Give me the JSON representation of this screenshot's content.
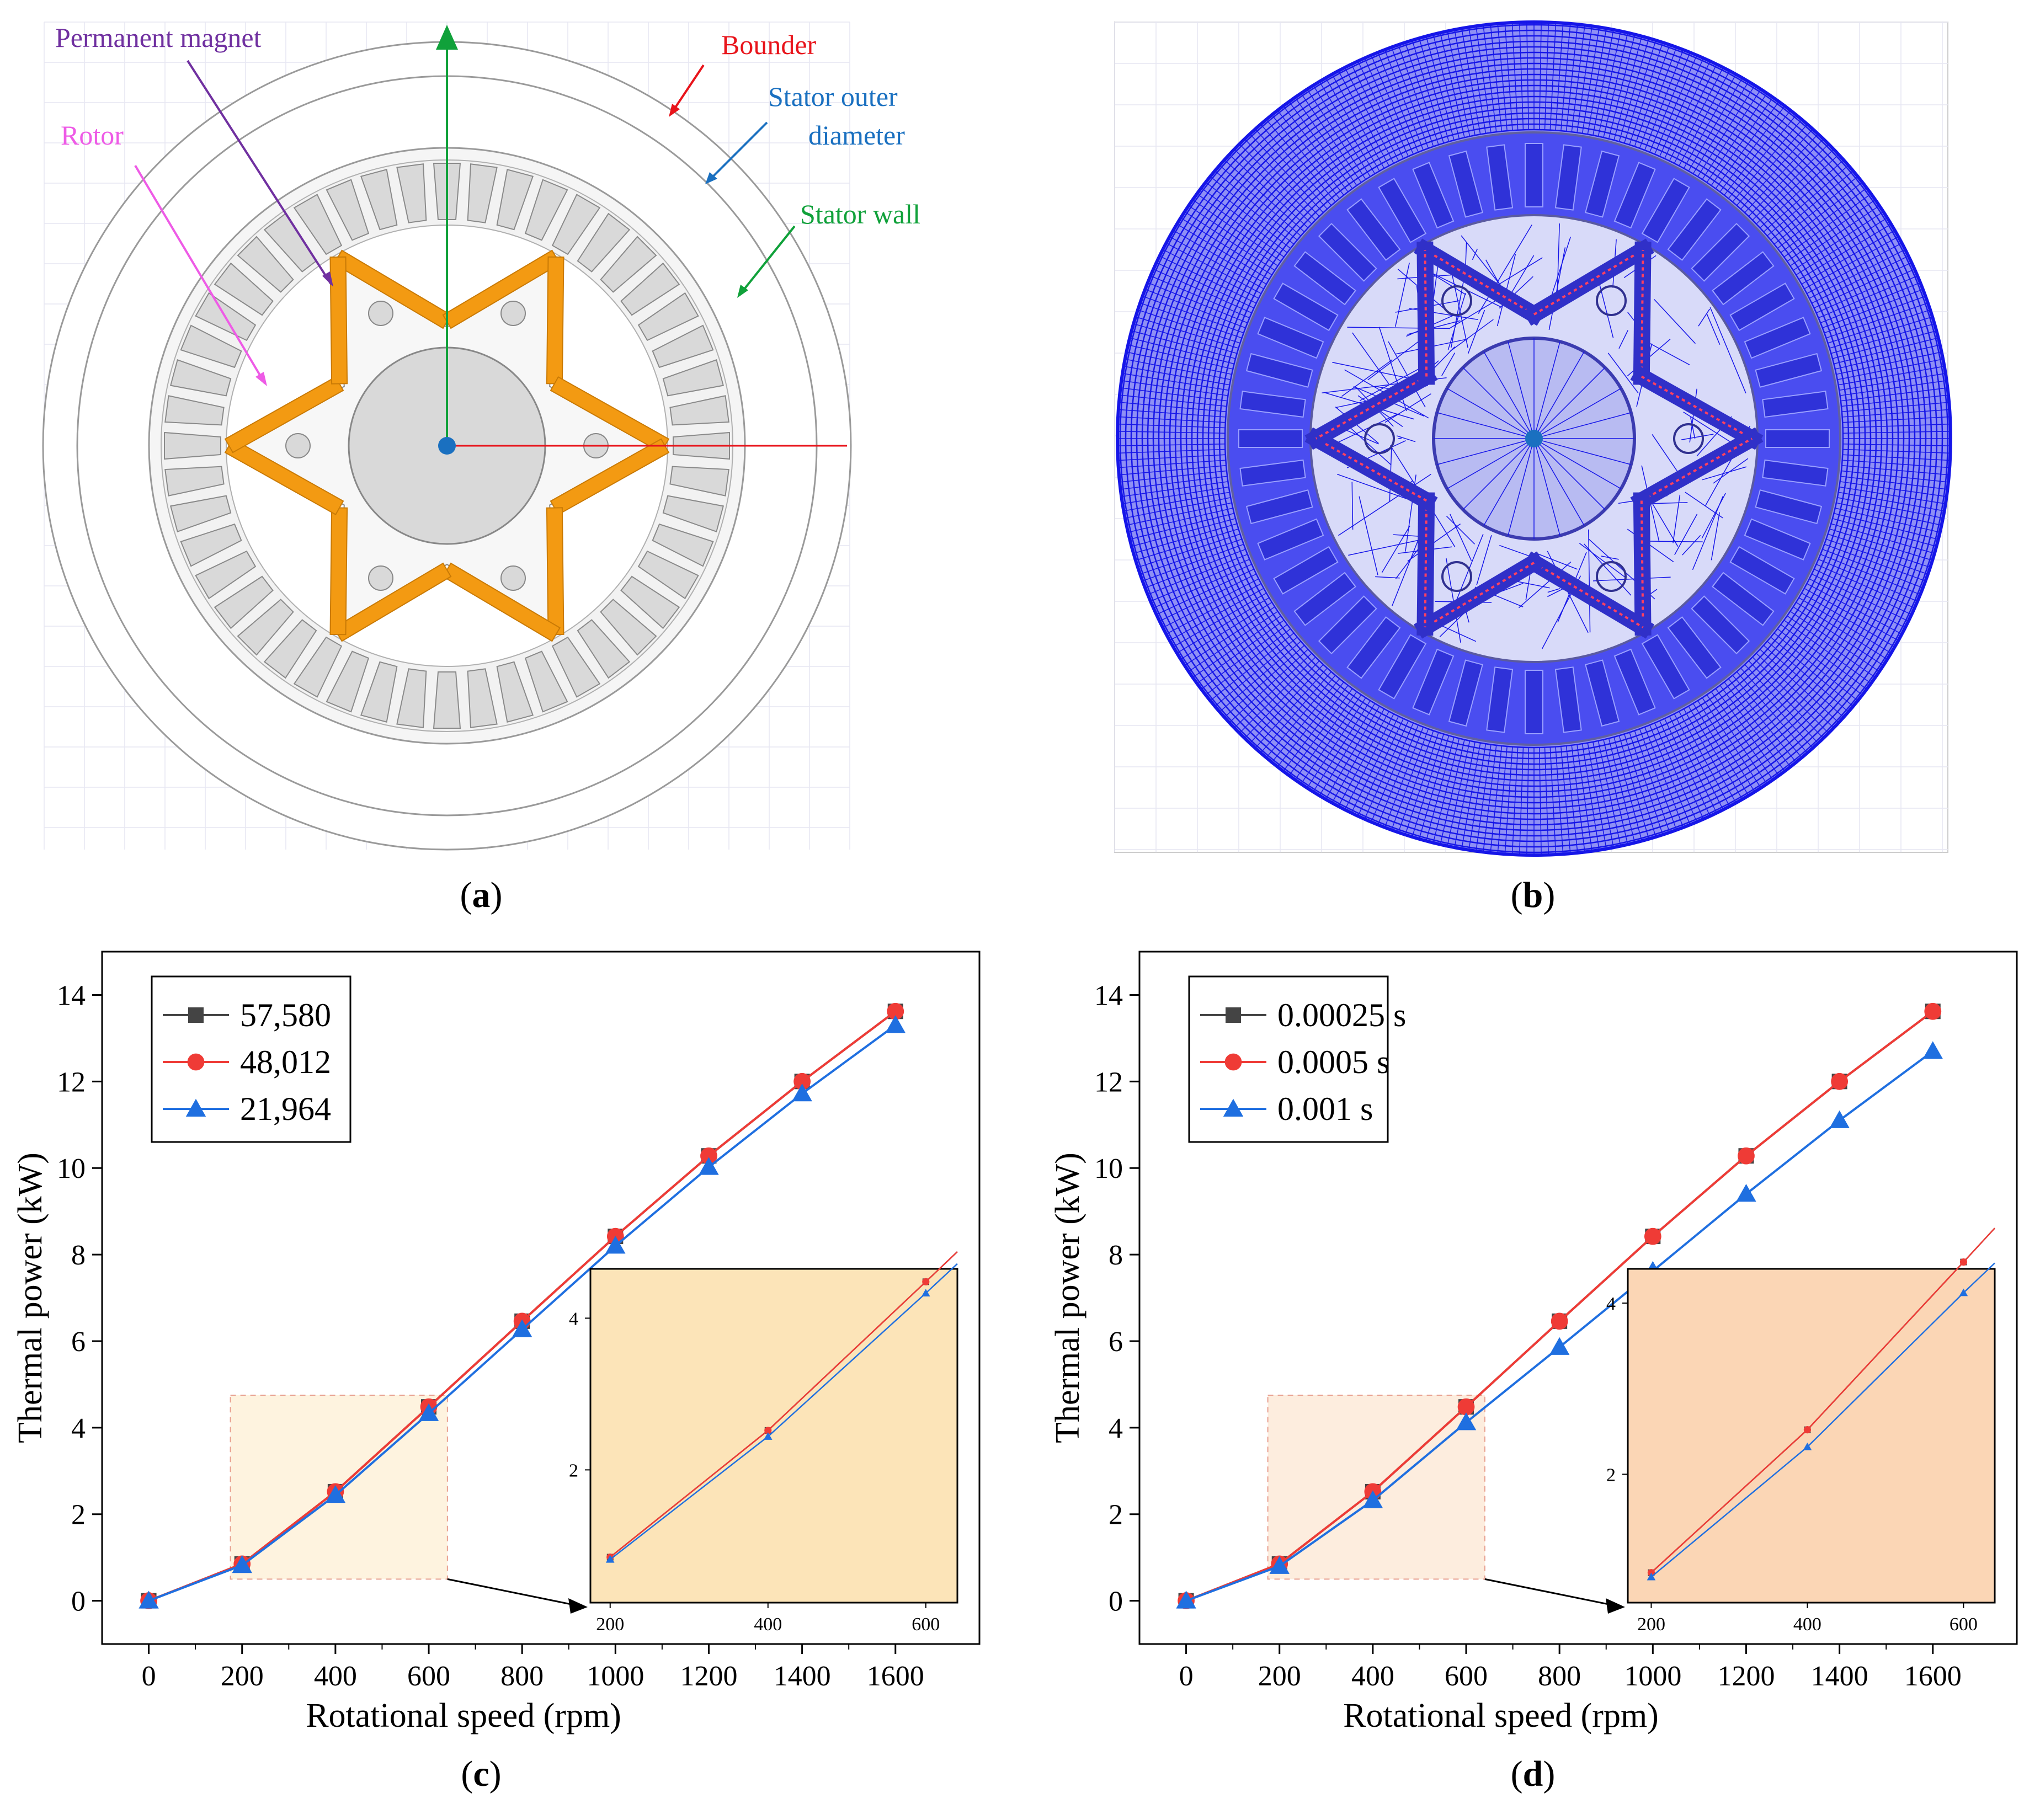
{
  "panel_a": {
    "caption_label": "a",
    "labels": {
      "permanent_magnet": "Permanent magnet",
      "rotor": "Rotor",
      "bounder": "Bounder",
      "stator_outer_1": "Stator outer",
      "stator_outer_2": "diameter",
      "stator_wall": "Stator wall"
    },
    "colors": {
      "magnet": "#f39a12",
      "permanent_magnet": "#7030a0",
      "rotor": "#ee5be6",
      "bounder": "#e8141b",
      "stator_outer": "#1a70c0",
      "stator_wall": "#10a13a"
    }
  },
  "panel_b": {
    "caption_label": "b",
    "mesh_color": "#1616e8"
  },
  "panel_c": {
    "caption_label": "c",
    "chart_data": {
      "type": "line",
      "xlabel": "Rotational speed (rpm)",
      "ylabel": "Thermal power (kW)",
      "xlim": [
        -100,
        1780
      ],
      "ylim": [
        -1,
        15
      ],
      "xticks": [
        0,
        200,
        400,
        600,
        800,
        1000,
        1200,
        1400,
        1600
      ],
      "yticks": [
        0,
        2,
        4,
        6,
        8,
        10,
        12,
        14
      ],
      "x": [
        0,
        200,
        400,
        600,
        800,
        1000,
        1200,
        1400,
        1600
      ],
      "series": [
        {
          "name": "57,580",
          "color": "#444444",
          "marker": "square",
          "values": [
            0,
            0.85,
            2.52,
            4.48,
            6.46,
            8.42,
            10.28,
            12.0,
            13.62
          ]
        },
        {
          "name": "48,012",
          "color": "#ef3b36",
          "marker": "circle",
          "values": [
            0,
            0.85,
            2.52,
            4.48,
            6.46,
            8.42,
            10.28,
            12.0,
            13.62
          ]
        },
        {
          "name": "21,964",
          "color": "#1f6fe0",
          "marker": "triangle",
          "values": [
            0,
            0.82,
            2.44,
            4.33,
            6.27,
            8.2,
            10.02,
            11.72,
            13.3
          ]
        }
      ],
      "inset": {
        "xlim": [
          175,
          640
        ],
        "ylim": [
          0.25,
          4.65
        ],
        "xticks": [
          200,
          400,
          600
        ],
        "yticks": [
          2,
          4
        ],
        "background": "#fce4b8"
      }
    }
  },
  "panel_d": {
    "caption_label": "d",
    "chart_data": {
      "type": "line",
      "xlabel": "Rotational speed (rpm)",
      "ylabel": "Thermal power (kW)",
      "xlim": [
        -100,
        1780
      ],
      "ylim": [
        -1,
        15
      ],
      "xticks": [
        0,
        200,
        400,
        600,
        800,
        1000,
        1200,
        1400,
        1600
      ],
      "yticks": [
        0,
        2,
        4,
        6,
        8,
        10,
        12,
        14
      ],
      "x": [
        0,
        200,
        400,
        600,
        800,
        1000,
        1200,
        1400,
        1600
      ],
      "series": [
        {
          "name": "0.00025 s",
          "color": "#444444",
          "marker": "square",
          "values": [
            0,
            0.85,
            2.52,
            4.48,
            6.46,
            8.42,
            10.28,
            12.0,
            13.62
          ]
        },
        {
          "name": "0.0005 s",
          "color": "#ef3b36",
          "marker": "circle",
          "values": [
            0,
            0.85,
            2.52,
            4.48,
            6.46,
            8.42,
            10.28,
            12.0,
            13.62
          ]
        },
        {
          "name": "0.001 s",
          "color": "#1f6fe0",
          "marker": "triangle",
          "values": [
            0,
            0.8,
            2.32,
            4.12,
            5.86,
            7.62,
            9.4,
            11.1,
            12.7
          ]
        }
      ],
      "inset": {
        "xlim": [
          170,
          640
        ],
        "ylim": [
          0.5,
          4.4
        ],
        "xticks": [
          200,
          400,
          600
        ],
        "yticks": [
          2,
          4
        ],
        "background": "#fbd6b5"
      }
    }
  }
}
